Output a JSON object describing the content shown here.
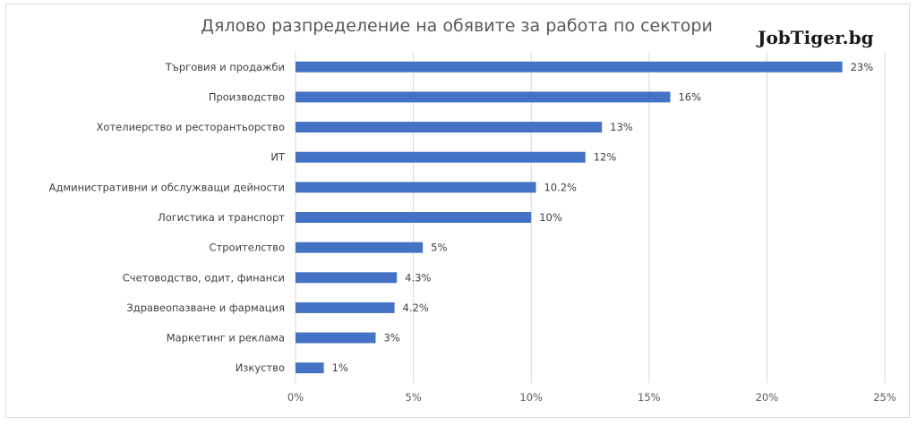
{
  "chart_data": {
    "type": "bar",
    "orientation": "horizontal",
    "title": "Дялово разпределение на обявите за работа по сектори",
    "categories": [
      "Търговия и продажби",
      "Производство",
      "Хотелиерство и ресторантьорство",
      "ИТ",
      "Административни и обслужващи дейности",
      "Логистика и транспорт",
      "Строителство",
      "Счетоводство, одит, финанси",
      "Здравеопазване и фармация",
      "Маркетинг и реклама",
      "Изкуство"
    ],
    "values": [
      23.2,
      15.9,
      13.0,
      12.3,
      10.2,
      10.0,
      5.4,
      4.3,
      4.2,
      3.4,
      1.2
    ],
    "value_labels": [
      "23%",
      "16%",
      "13%",
      "12%",
      "10.2%",
      "10%",
      "5%",
      "4.3%",
      "4.2%",
      "3%",
      "1%"
    ],
    "xlim": [
      0,
      25
    ],
    "xticks": [
      0,
      5,
      10,
      15,
      20,
      25
    ],
    "xtick_labels": [
      "0%",
      "5%",
      "10%",
      "15%",
      "20%",
      "25%"
    ],
    "xlabel": "",
    "ylabel": "",
    "grid": "vertical",
    "legend": "none",
    "bar_color": "#4472c4",
    "grid_color": "#d9d9d9"
  },
  "brand": {
    "text": "JobTiger.bg"
  }
}
